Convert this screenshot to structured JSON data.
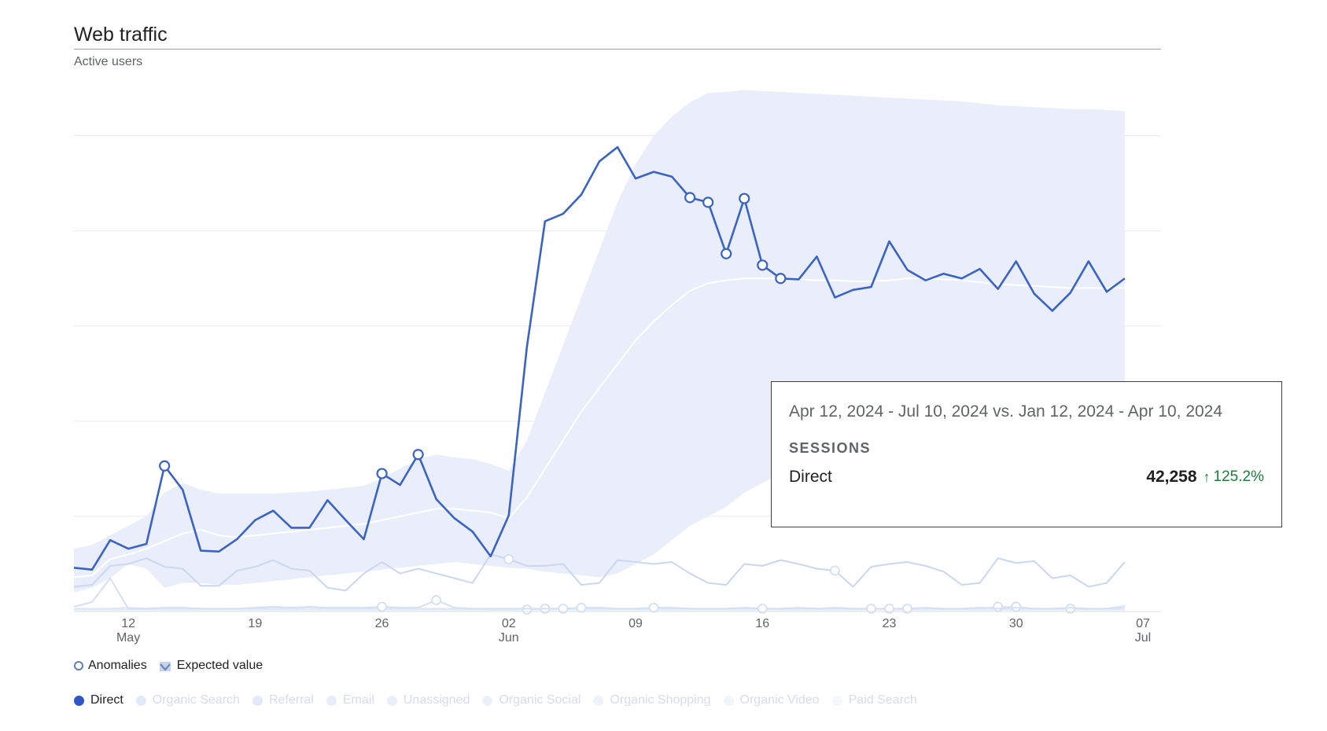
{
  "card": {
    "title": "Web traffic",
    "subtitle": "Active users"
  },
  "legend_top": [
    {
      "label": "Anomalies",
      "icon": "ring-icon"
    },
    {
      "label": "Expected value",
      "icon": "expected-value-icon"
    }
  ],
  "colors": {
    "direct": "#3a63c6",
    "band": "#e9eefa",
    "expected": "#ffffff",
    "other_series": "#c9d7f3",
    "grid": "#e8eaed"
  },
  "tooltip": {
    "range": "Apr 12, 2024 - Jul 10, 2024 vs. Jan 12, 2024 - Apr 10, 2024",
    "metric": "SESSIONS",
    "row_name": "Direct",
    "row_value": "42,258",
    "row_change": "125.2%",
    "change_icon": "arrow-up-icon"
  },
  "chart_data": {
    "type": "line",
    "x_start": "2024-05-09",
    "x_end": "2024-07-08",
    "x_ticks": [
      {
        "date": "2024-05-12",
        "label": "12",
        "sub": "May"
      },
      {
        "date": "2024-05-19",
        "label": "19",
        "sub": ""
      },
      {
        "date": "2024-05-26",
        "label": "26",
        "sub": ""
      },
      {
        "date": "2024-06-02",
        "label": "02",
        "sub": "Jun"
      },
      {
        "date": "2024-06-09",
        "label": "09",
        "sub": ""
      },
      {
        "date": "2024-06-16",
        "label": "16",
        "sub": ""
      },
      {
        "date": "2024-06-23",
        "label": "23",
        "sub": ""
      },
      {
        "date": "2024-06-30",
        "label": "30",
        "sub": ""
      },
      {
        "date": "2024-07-07",
        "label": "07",
        "sub": "Jul"
      }
    ],
    "ylim": [
      0,
      560
    ],
    "gridlines": [
      100,
      200,
      300,
      400,
      500
    ],
    "series": [
      {
        "name": "Direct",
        "color": "#3a63c6",
        "values": [
          46,
          44,
          75,
          66,
          71,
          153,
          128,
          64,
          63,
          76,
          96,
          106,
          88,
          88,
          117,
          96,
          76,
          145,
          133,
          165,
          118,
          98,
          84,
          58,
          101,
          278,
          410,
          418,
          438,
          473,
          488,
          455,
          462,
          457,
          435,
          430,
          376,
          434,
          364,
          350,
          349,
          373,
          330,
          338,
          341,
          389,
          359,
          348,
          355,
          350,
          360,
          339,
          368,
          334,
          316,
          335,
          368,
          336,
          350
        ],
        "anomalies": [
          5,
          17,
          19,
          34,
          35,
          36,
          37,
          38,
          39
        ]
      },
      {
        "name": "Organic Search",
        "color": "#c9d7f3",
        "values": [
          26,
          28,
          48,
          50,
          56,
          47,
          45,
          27,
          27,
          43,
          47,
          54,
          45,
          43,
          25,
          22,
          40,
          52,
          40,
          45,
          40,
          35,
          30,
          60,
          55,
          48,
          48,
          50,
          28,
          30,
          54,
          52,
          50,
          52,
          40,
          30,
          28,
          50,
          48,
          54,
          50,
          45,
          43,
          26,
          47,
          50,
          52,
          48,
          42,
          28,
          30,
          56,
          51,
          53,
          35,
          38,
          26,
          30,
          52
        ],
        "anomalies": [
          24,
          42
        ]
      },
      {
        "name": "Referral",
        "color": "#d4e0f6",
        "values": [
          5,
          10,
          35,
          3,
          3,
          4,
          4,
          3,
          3,
          3,
          4,
          5,
          4,
          5,
          4,
          4,
          4,
          5,
          4,
          4,
          12,
          4,
          3,
          3,
          3,
          3,
          3,
          3,
          4,
          4,
          3,
          3,
          4,
          4,
          3,
          3,
          3,
          4,
          3,
          3,
          4,
          3,
          4,
          3,
          3,
          3,
          3,
          4,
          3,
          3,
          4,
          3,
          4,
          3,
          3,
          4,
          3,
          3,
          4
        ],
        "anomalies": [
          17,
          20,
          27,
          28,
          32,
          38,
          44,
          45,
          46
        ]
      },
      {
        "name": "Email",
        "color": "#dde7f8",
        "values": [
          3,
          3,
          3,
          4,
          3,
          3,
          3,
          3,
          3,
          3,
          3,
          3,
          3,
          4,
          3,
          3,
          3,
          3,
          3,
          3,
          3,
          3,
          3,
          2,
          2,
          2,
          3,
          3,
          3,
          3,
          3,
          3,
          3,
          3,
          3,
          3,
          3,
          3,
          3,
          3,
          3,
          3,
          3,
          3,
          3,
          3,
          3,
          3,
          3,
          3,
          3,
          5,
          5,
          3,
          3,
          3,
          3,
          3,
          6
        ],
        "anomalies": [
          25,
          26,
          51,
          52,
          55
        ]
      },
      {
        "name": "Unassigned",
        "color": "#e2ebf9",
        "values": [
          2,
          2,
          2,
          2,
          2,
          2,
          2,
          2,
          2,
          2,
          2,
          2,
          2,
          2,
          2,
          2,
          2,
          2,
          2,
          2,
          2,
          2,
          2,
          2,
          2,
          2,
          2,
          2,
          2,
          2,
          2,
          2,
          2,
          2,
          2,
          2,
          2,
          2,
          2,
          2,
          2,
          2,
          2,
          2,
          2,
          2,
          2,
          2,
          2,
          2,
          2,
          2,
          2,
          2,
          2,
          2,
          2,
          2,
          2
        ],
        "anomalies": []
      }
    ],
    "expected": [
      36,
      38,
      55,
      60,
      66,
      74,
      82,
      86,
      80,
      78,
      80,
      82,
      84,
      86,
      88,
      90,
      92,
      96,
      100,
      104,
      108,
      108,
      106,
      104,
      98,
      120,
      150,
      180,
      210,
      235,
      260,
      285,
      305,
      322,
      337,
      345,
      348,
      350,
      350,
      350,
      349,
      348,
      348,
      347,
      347,
      348,
      350,
      350,
      349,
      348,
      346,
      344,
      343,
      342,
      341,
      340,
      340,
      340,
      340
    ],
    "band_upper": [
      66,
      70,
      80,
      90,
      100,
      125,
      135,
      128,
      124,
      124,
      124,
      124,
      125,
      126,
      128,
      130,
      132,
      140,
      150,
      160,
      165,
      162,
      160,
      155,
      148,
      180,
      230,
      280,
      330,
      380,
      430,
      470,
      500,
      520,
      535,
      545,
      546,
      548,
      547,
      546,
      545,
      544,
      543,
      542,
      541,
      540,
      539,
      538,
      537,
      536,
      534,
      532,
      531,
      530,
      529,
      528,
      528,
      527,
      526
    ],
    "band_lower": [
      20,
      25,
      35,
      50,
      45,
      25,
      30,
      30,
      28,
      28,
      30,
      32,
      34,
      36,
      38,
      40,
      42,
      44,
      46,
      48,
      50,
      52,
      50,
      48,
      46,
      45,
      42,
      40,
      38,
      36,
      40,
      50,
      60,
      75,
      90,
      100,
      110,
      125,
      135,
      145,
      150,
      155,
      158,
      160,
      160,
      160,
      160,
      158,
      158,
      158,
      156,
      155,
      154,
      153,
      152,
      151,
      150,
      150,
      150
    ],
    "legend": [
      {
        "name": "Direct",
        "color": "#2f55c7"
      },
      {
        "name": "Organic Search",
        "color": "#e3e9f8"
      },
      {
        "name": "Referral",
        "color": "#e3e9f8"
      },
      {
        "name": "Email",
        "color": "#e6ecf9"
      },
      {
        "name": "Unassigned",
        "color": "#e8eefa"
      },
      {
        "name": "Organic Social",
        "color": "#ebf0fa"
      },
      {
        "name": "Organic Shopping",
        "color": "#eef3fb"
      },
      {
        "name": "Organic Video",
        "color": "#f1f5fc"
      },
      {
        "name": "Paid Search",
        "color": "#f4f7fd"
      }
    ]
  }
}
